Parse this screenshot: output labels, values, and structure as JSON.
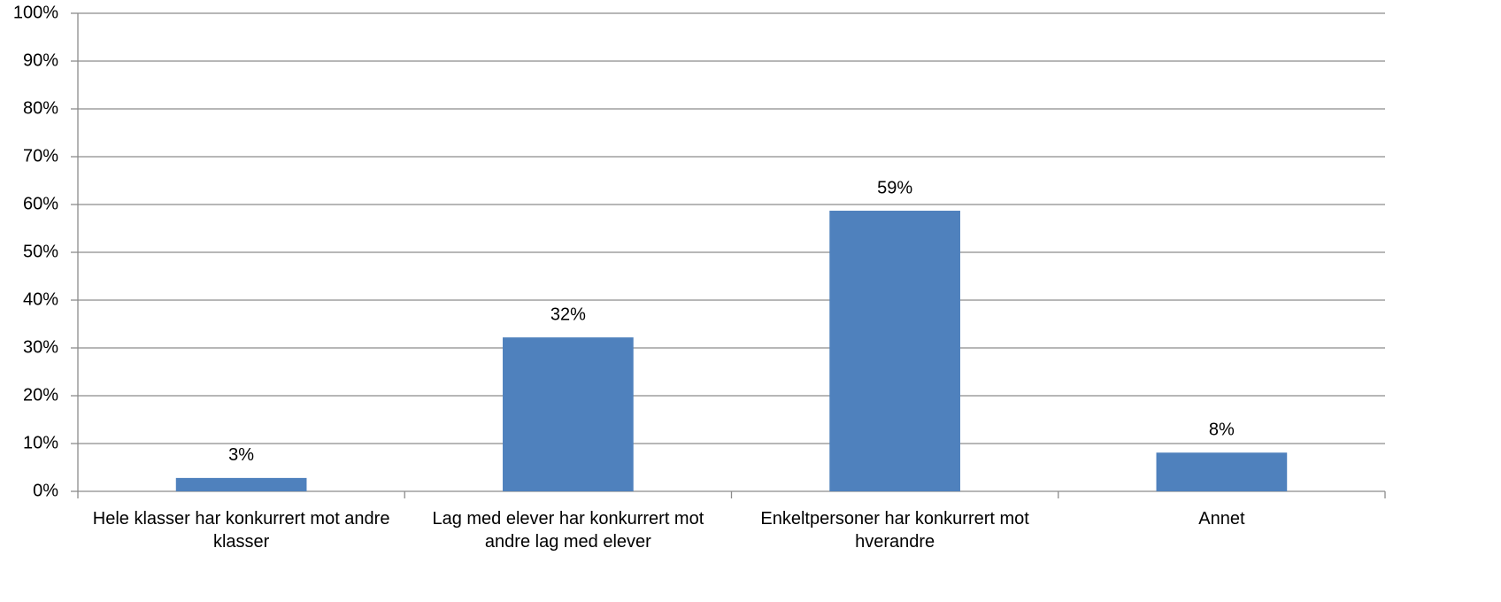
{
  "chart_data": {
    "type": "bar",
    "categories": [
      "Hele klasser har konkurrert mot andre klasser",
      "Lag med elever har konkurrert mot andre lag med elever",
      "Enkeltpersoner har konkurrert mot hverandre",
      "Annet"
    ],
    "values": [
      2.8,
      32.2,
      58.7,
      8.1
    ],
    "value_labels": [
      "3%",
      "32%",
      "59%",
      "8%"
    ],
    "color": "#4f81bd",
    "ylim": [
      0,
      100
    ],
    "yticks": [
      {
        "value": 0,
        "label": "0%"
      },
      {
        "value": 10,
        "label": "10%"
      },
      {
        "value": 20,
        "label": "20%"
      },
      {
        "value": 30,
        "label": "30%"
      },
      {
        "value": 40,
        "label": "40%"
      },
      {
        "value": 50,
        "label": "50%"
      },
      {
        "value": 60,
        "label": "60%"
      },
      {
        "value": 70,
        "label": "70%"
      },
      {
        "value": 80,
        "label": "80%"
      },
      {
        "value": 90,
        "label": "90%"
      },
      {
        "value": 100,
        "label": "100%"
      }
    ],
    "grid": true
  }
}
